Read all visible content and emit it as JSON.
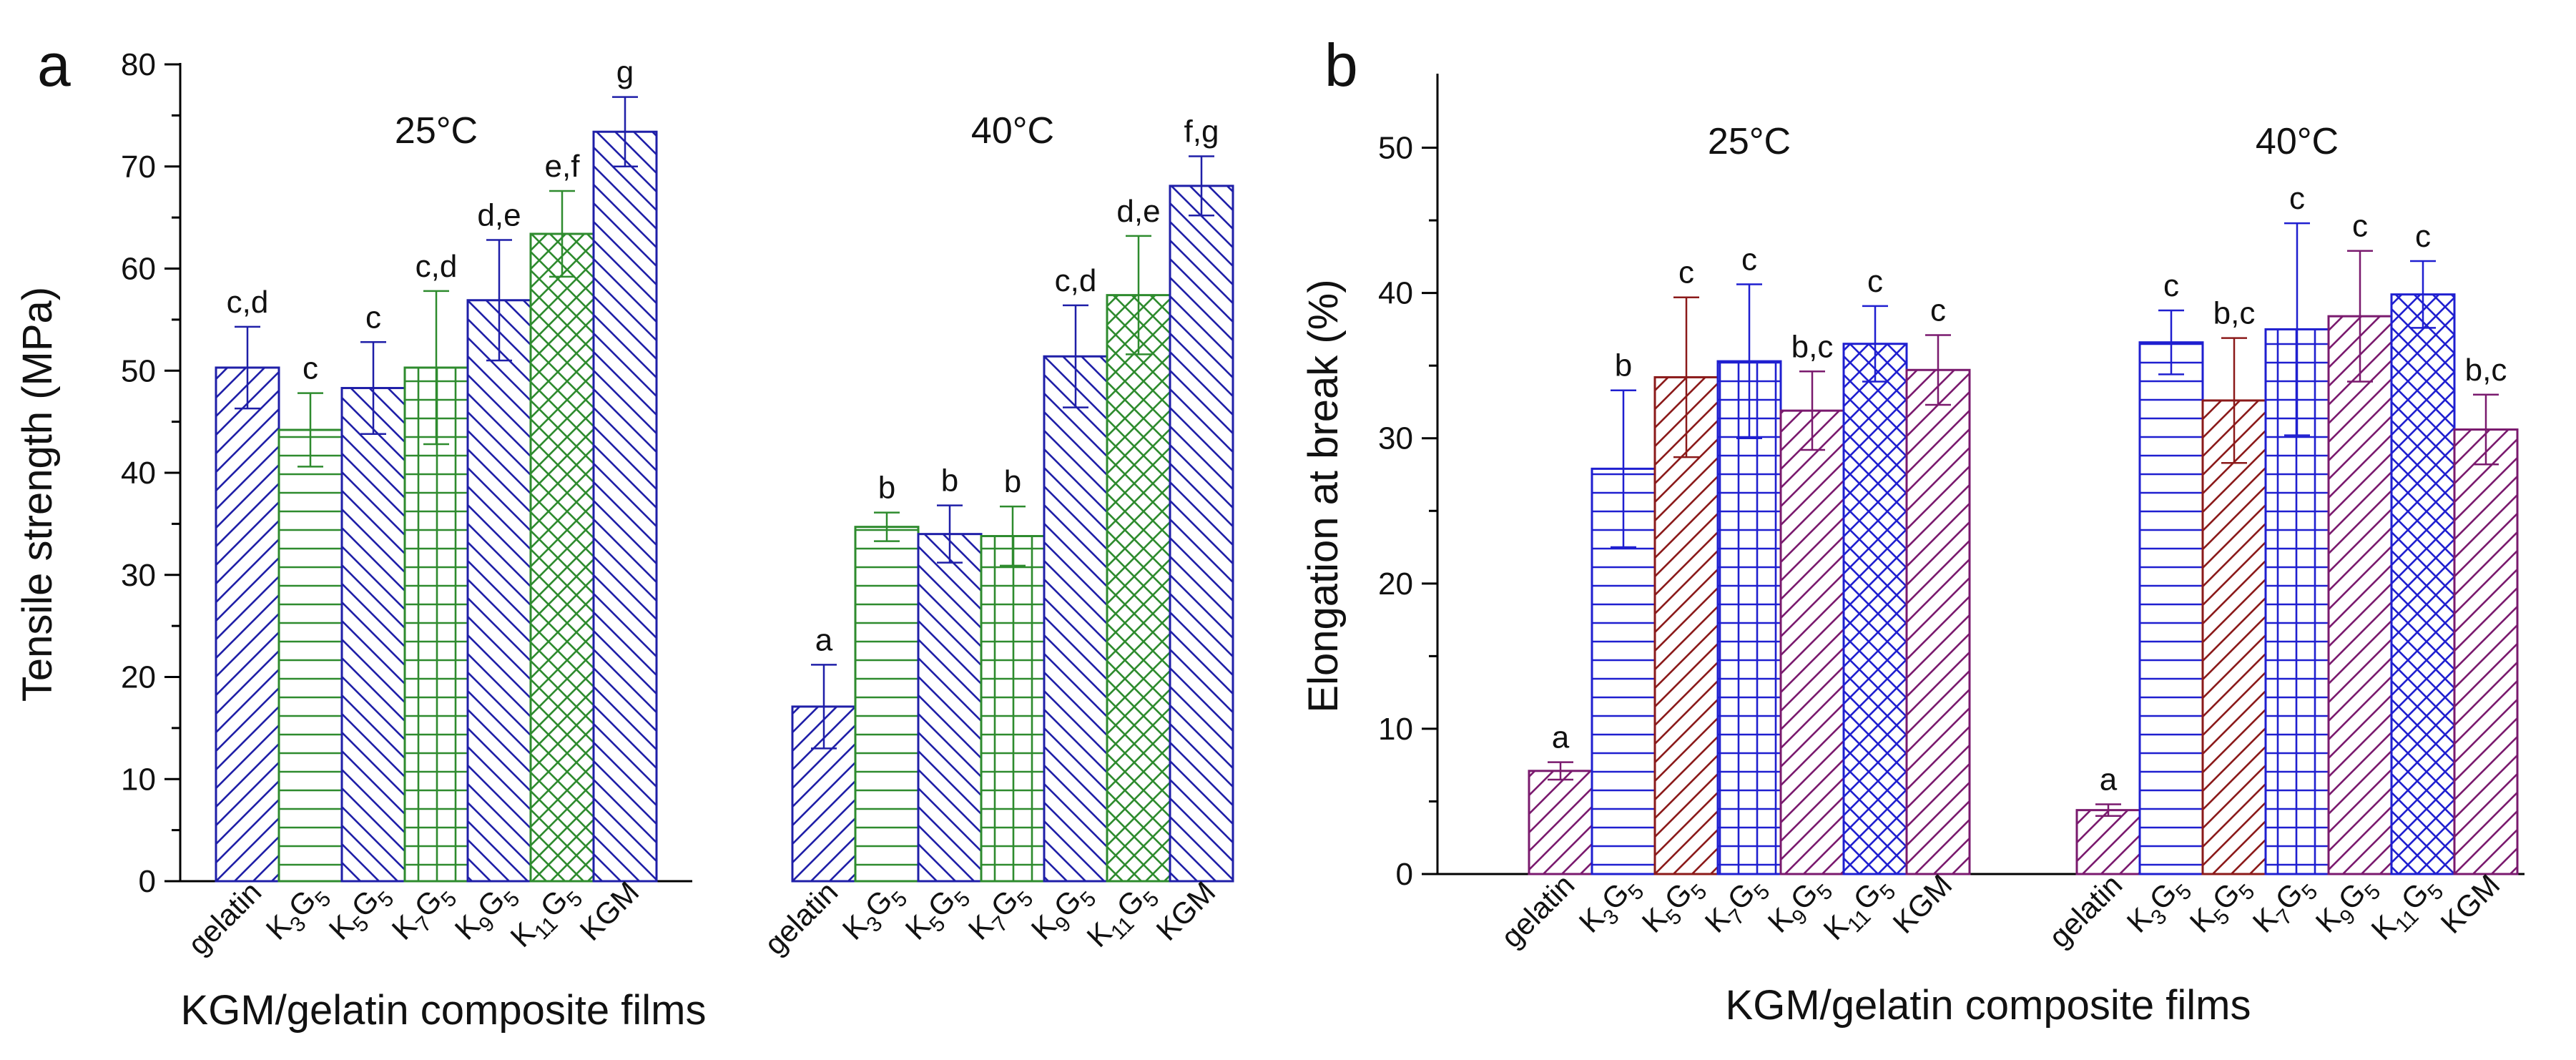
{
  "chart_data": [
    {
      "type": "bar",
      "panel_label": "a",
      "ylabel": "Tensile strength (MPa)",
      "xlabel": "KGM/gelatin composite films",
      "ylim": [
        0,
        80
      ],
      "yticks": [
        0,
        10,
        20,
        30,
        40,
        50,
        60,
        70,
        80
      ],
      "categories": [
        "gelatin",
        "K3G5",
        "K5G5",
        "K7G5",
        "K9G5",
        "K11G5",
        "KGM"
      ],
      "groups": [
        {
          "name": "25°C",
          "values": [
            50.3,
            44.2,
            48.3,
            50.3,
            56.9,
            63.4,
            73.4
          ],
          "errors": [
            4.0,
            3.6,
            4.5,
            7.5,
            5.9,
            4.2,
            3.4
          ],
          "significance": [
            "c,d",
            "c",
            "c",
            "c,d",
            "d,e",
            "e,f",
            "g"
          ]
        },
        {
          "name": "40°C",
          "values": [
            17.1,
            34.7,
            34.0,
            33.8,
            51.4,
            57.4,
            68.1
          ],
          "errors": [
            4.1,
            1.4,
            2.8,
            2.9,
            5.0,
            5.8,
            2.9
          ],
          "significance": [
            "a",
            "b",
            "b",
            "b",
            "c,d",
            "d,e",
            "f,g"
          ]
        }
      ],
      "bar_colors": [
        "#1f1fa8",
        "#2e8b2e",
        "#1f1fa8",
        "#2e8b2e",
        "#1f1fa8",
        "#2e8b2e",
        "#1f1fa8"
      ],
      "bar_patterns": [
        "diag-right",
        "horizontal",
        "diag-left",
        "grid",
        "diag-left",
        "crosshatch",
        "diag-left"
      ]
    },
    {
      "type": "bar",
      "panel_label": "b",
      "ylabel": "Elongation at break (%)",
      "xlabel": "KGM/gelatin composite films",
      "ylim": [
        0,
        55
      ],
      "yticks": [
        0,
        10,
        20,
        30,
        40,
        50
      ],
      "categories": [
        "gelatin",
        "K3G5",
        "K5G5",
        "K7G5",
        "K9G5",
        "K11G5",
        "KGM"
      ],
      "groups": [
        {
          "name": "25°C",
          "values": [
            7.1,
            27.9,
            34.2,
            35.3,
            31.9,
            36.5,
            34.7
          ],
          "errors": [
            0.6,
            5.4,
            5.5,
            5.3,
            2.7,
            2.6,
            2.4
          ],
          "significance": [
            "a",
            "b",
            "c",
            "c",
            "b,c",
            "c",
            "c"
          ]
        },
        {
          "name": "40°C",
          "values": [
            4.4,
            36.6,
            32.6,
            37.5,
            38.4,
            39.9,
            30.6
          ],
          "errors": [
            0.4,
            2.2,
            4.3,
            7.3,
            4.5,
            2.3,
            2.4
          ],
          "significance": [
            "a",
            "c",
            "b,c",
            "c",
            "c",
            "c",
            "b,c"
          ]
        }
      ],
      "bar_colors": [
        "#7a1a6e",
        "#1f1fd0",
        "#8b1a1a",
        "#1f1fd0",
        "#7a1a6e",
        "#1f1fd0",
        "#7a1a6e"
      ],
      "bar_patterns": [
        "diag-right",
        "horizontal",
        "diag-right",
        "grid",
        "diag-right",
        "crosshatch",
        "diag-right"
      ]
    }
  ]
}
